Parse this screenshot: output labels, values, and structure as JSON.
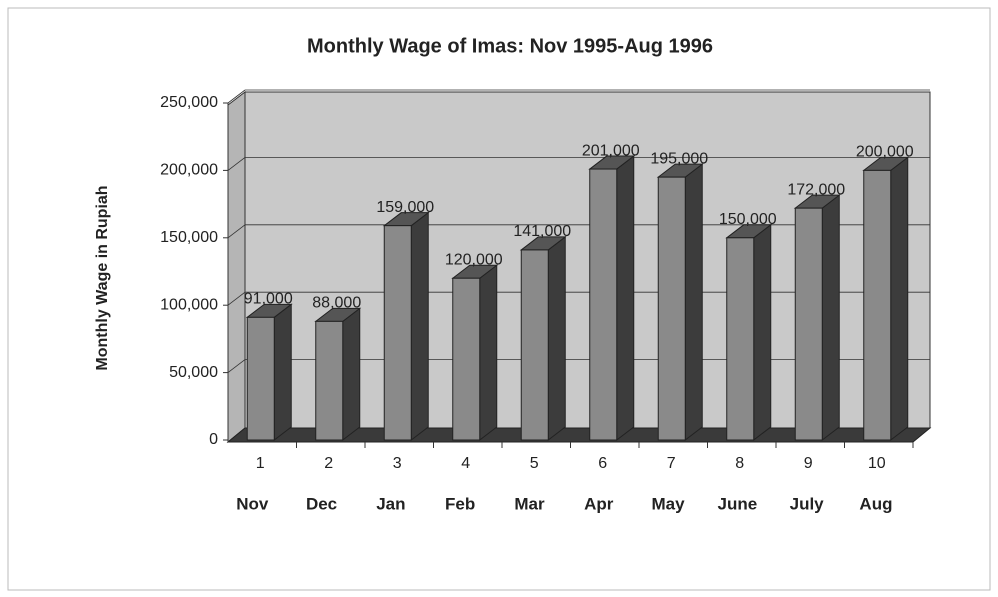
{
  "chart_data": {
    "type": "bar3d",
    "title": "Monthly Wage of Imas: Nov 1995-Aug 1996",
    "y_label": "Monthly Wage in Rupiah",
    "categories": [
      "1",
      "2",
      "3",
      "4",
      "5",
      "6",
      "7",
      "8",
      "9",
      "10"
    ],
    "category_labels": [
      "Nov",
      "Dec",
      "Jan",
      "Feb",
      "Mar",
      "Apr",
      "May",
      "June",
      "July",
      "Aug"
    ],
    "values": [
      91000,
      88000,
      159000,
      120000,
      141000,
      201000,
      195000,
      150000,
      172000,
      200000
    ],
    "value_labels": [
      "91,000",
      "88,000",
      "159,000",
      "120,000",
      "141,000",
      "201,000",
      "195,000",
      "150,000",
      "172,000",
      "200,000"
    ],
    "color": "#8a8a8a",
    "ylim": [
      0,
      250000
    ],
    "yticks": [
      0,
      {
        "value": 50000,
        "label": "50,000"
      },
      {
        "value": 100000,
        "label": "100,000"
      },
      {
        "value": 150000,
        "label": "150,000"
      },
      {
        "value": 200000,
        "label": "200,000"
      },
      {
        "value": 250000,
        "label": "250,000"
      }
    ],
    "grid": true
  }
}
